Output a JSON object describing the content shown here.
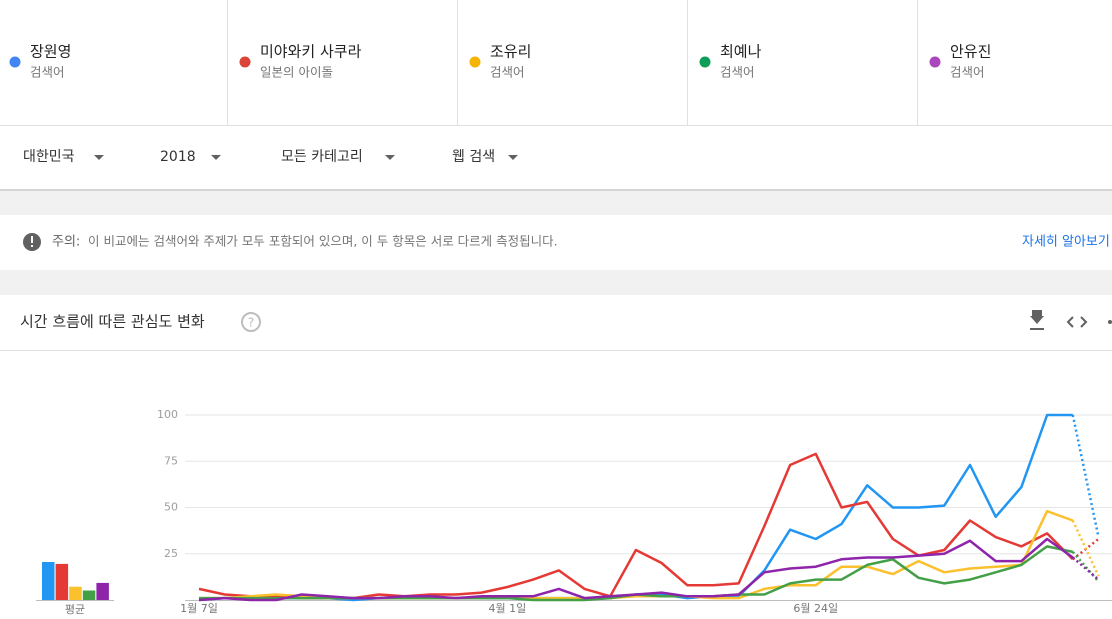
{
  "filters": [
    "대한민국",
    "2018",
    "모든 카테고리",
    "웹 검색"
  ],
  "notice": {
    "label": "주의:",
    "text": "이 비교에는 검색어와 주제가 모두 포함되어 있으며, 이 두 항목은 서로 다르게 측정됩니다.",
    "link": "자세히 알아보기"
  },
  "average_label": "평균",
  "chart_data": {
    "type": "line",
    "title": "시간 흐름에 따른 관심도 변화",
    "categories": [
      "1월 7일",
      null,
      null,
      null,
      null,
      null,
      null,
      null,
      null,
      null,
      null,
      null,
      "4월 1일",
      null,
      null,
      null,
      null,
      null,
      null,
      null,
      null,
      null,
      null,
      null,
      "6월 24일",
      null,
      null,
      null,
      null,
      null,
      null,
      null,
      null,
      null,
      null,
      null
    ],
    "ylim": [
      0,
      100
    ],
    "yticks": [
      25,
      50,
      75,
      100
    ],
    "grid": true,
    "series": [
      {
        "name": "장원영",
        "subtitle": "검색어",
        "color": "#4285f4",
        "line_color": "#2196f3",
        "average": 20,
        "values": [
          0,
          1,
          1,
          1,
          1,
          1,
          0,
          1,
          1,
          1,
          1,
          1,
          1,
          1,
          1,
          1,
          1,
          3,
          3,
          1,
          2,
          2,
          16,
          38,
          33,
          41,
          62,
          50,
          50,
          51,
          73,
          45,
          61,
          100,
          100,
          34
        ]
      },
      {
        "name": "미야와키 사쿠라",
        "subtitle": "일본의 아이돌",
        "color": "#db4437",
        "line_color": "#e53935",
        "average": 19,
        "values": [
          6,
          3,
          2,
          2,
          1,
          1,
          1,
          3,
          2,
          3,
          3,
          4,
          7,
          11,
          16,
          6,
          2,
          27,
          20,
          8,
          8,
          9,
          40,
          73,
          79,
          50,
          53,
          33,
          24,
          27,
          43,
          34,
          29,
          36,
          22,
          33
        ]
      },
      {
        "name": "조유리",
        "subtitle": "검색어",
        "color": "#f4b400",
        "line_color": "#fbc02d",
        "average": 7,
        "values": [
          1,
          1,
          2,
          3,
          2,
          1,
          1,
          1,
          1,
          1,
          1,
          1,
          2,
          1,
          1,
          1,
          1,
          2,
          2,
          2,
          1,
          1,
          6,
          8,
          8,
          18,
          18,
          14,
          21,
          15,
          17,
          18,
          19,
          48,
          43,
          13
        ]
      },
      {
        "name": "최예나",
        "subtitle": "검색어",
        "color": "#0f9d58",
        "line_color": "#43a047",
        "average": 5,
        "values": [
          1,
          1,
          1,
          1,
          1,
          1,
          1,
          1,
          1,
          1,
          1,
          1,
          1,
          0,
          0,
          0,
          1,
          3,
          2,
          2,
          2,
          3,
          3,
          9,
          11,
          11,
          19,
          22,
          12,
          9,
          11,
          15,
          19,
          29,
          26,
          10
        ]
      },
      {
        "name": "안유진",
        "subtitle": "검색어",
        "color": "#ab47bc",
        "line_color": "#8e24aa",
        "average": 9,
        "values": [
          0,
          1,
          0,
          0,
          3,
          2,
          1,
          1,
          2,
          2,
          1,
          2,
          2,
          2,
          6,
          1,
          2,
          3,
          4,
          2,
          2,
          3,
          15,
          17,
          18,
          22,
          23,
          23,
          24,
          25,
          32,
          21,
          21,
          33,
          23,
          11
        ]
      }
    ]
  }
}
